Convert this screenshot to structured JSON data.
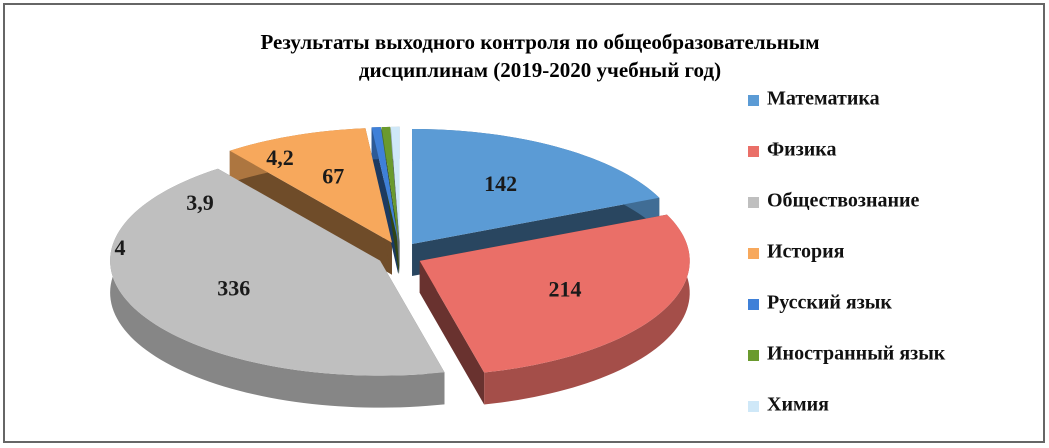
{
  "chart_data": {
    "type": "pie",
    "title": "Результаты выходного контроля  по общеобразовательным дисциплинам  (2019-2020 учебный  год)",
    "categories": [
      "Математика",
      "Физика",
      "Обществознание",
      "История",
      "Русский язык",
      "Иностранный язык",
      "Химия"
    ],
    "values": [
      142,
      214,
      336,
      67,
      4.2,
      3.9,
      4
    ],
    "value_labels": [
      "142",
      "214",
      "336",
      "67",
      "4,2",
      "3,9",
      "4"
    ],
    "colors": [
      "#5b9bd5",
      "#ea6f68",
      "#bfbfbf",
      "#f7a85c",
      "#3f80d8",
      "#6a9a2e",
      "#cfe8f8"
    ],
    "legend": "right"
  }
}
